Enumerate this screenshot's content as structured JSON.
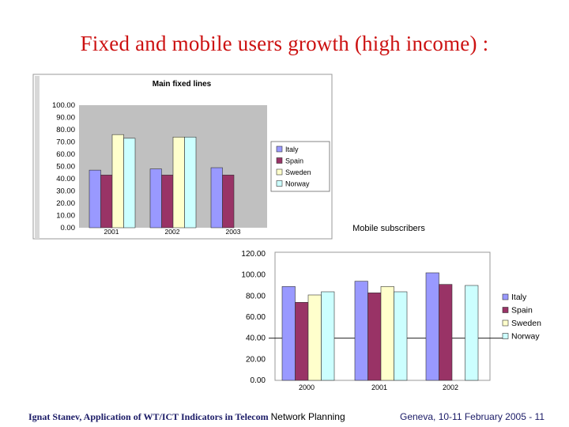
{
  "slide": {
    "title": "Fixed and mobile users growth (high income) :",
    "footer_left_a": "Ignat Stanev, Application of WT/ICT Indicators in Telecom ",
    "footer_left_b": "Network Planning",
    "footer_right": "Geneva, 10-11 February 2005 - 11"
  },
  "colors": {
    "Italy": "#9999ff",
    "Spain": "#993366",
    "Sweden": "#ffffcc",
    "Norway": "#ccffff",
    "plot_bg": "#c0c0c0",
    "title_red": "#cc1111"
  },
  "chart_data": [
    {
      "type": "bar",
      "title": "Main fixed lines",
      "categories": [
        "2001",
        "2002",
        "2003"
      ],
      "ylim": [
        0,
        100
      ],
      "yticks": [
        "0.00",
        "10.00",
        "20.00",
        "30.00",
        "40.00",
        "50.00",
        "60.00",
        "70.00",
        "80.00",
        "90.00",
        "100.00"
      ],
      "grid": false,
      "legend": "right",
      "series": [
        {
          "name": "Italy",
          "values": [
            47,
            48,
            49
          ]
        },
        {
          "name": "Spain",
          "values": [
            43,
            43,
            43
          ]
        },
        {
          "name": "Sweden",
          "values": [
            76,
            74,
            null
          ]
        },
        {
          "name": "Norway",
          "values": [
            73,
            74,
            null
          ]
        }
      ]
    },
    {
      "type": "bar",
      "title": "Mobile subscribers",
      "categories": [
        "2000",
        "2001",
        "2002"
      ],
      "ylim": [
        0,
        120
      ],
      "yticks": [
        "0.00",
        "20.00",
        "40.00",
        "60.00",
        "80.00",
        "100.00",
        "120.00"
      ],
      "grid": false,
      "legend": "right",
      "series": [
        {
          "name": "Italy",
          "values": [
            89,
            94,
            102
          ]
        },
        {
          "name": "Spain",
          "values": [
            74,
            83,
            91
          ]
        },
        {
          "name": "Sweden",
          "values": [
            81,
            89,
            null
          ]
        },
        {
          "name": "Norway",
          "values": [
            84,
            84,
            90
          ]
        }
      ]
    }
  ]
}
